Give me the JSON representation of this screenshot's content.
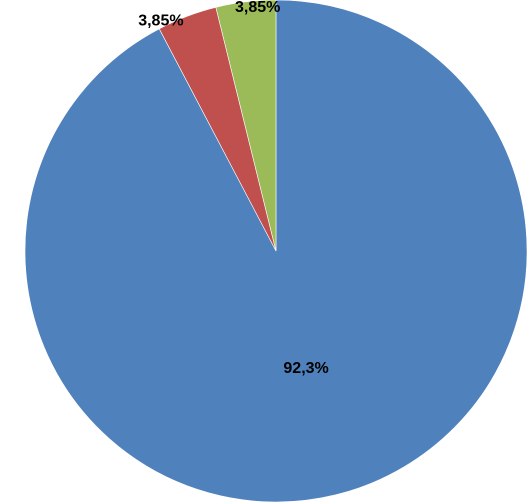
{
  "chart_data": {
    "type": "pie",
    "title": "",
    "legend": "none",
    "categories": [
      "",
      "",
      ""
    ],
    "values": [
      92.3,
      3.85,
      3.85
    ],
    "data_labels": [
      "92,3%",
      "3,85%",
      "3,85%"
    ],
    "colors": [
      "#4f81bd",
      "#c0504d",
      "#9bbb59"
    ],
    "start_angle_deg": 0,
    "direction": "clockwise"
  }
}
